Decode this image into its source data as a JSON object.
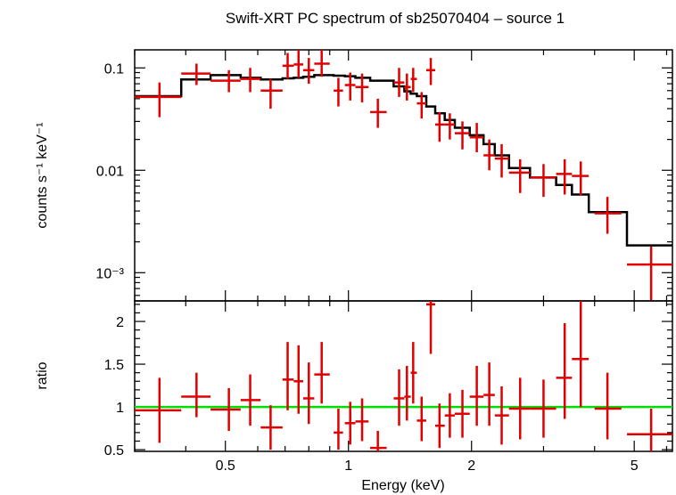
{
  "chart_data": {
    "type": "scatter",
    "title": "Swift-XRT PC spectrum of sb25070404 – source 1",
    "xlabel": "Energy (keV)",
    "x_scale": "log",
    "xlim": [
      0.3,
      6.2
    ],
    "x_ticks": [
      {
        "value": 0.5,
        "label": "0.5"
      },
      {
        "value": 1,
        "label": "1"
      },
      {
        "value": 2,
        "label": "2"
      },
      {
        "value": 5,
        "label": "5"
      }
    ],
    "colors": {
      "data": "#e00000",
      "model": "#000000",
      "unity": "#00dd00"
    },
    "panels": [
      {
        "name": "spectrum",
        "ylabel": "counts s⁻¹ keV⁻¹",
        "y_scale": "log",
        "ylim": [
          0.00053,
          0.15
        ],
        "y_ticks": [
          {
            "value": 0.1,
            "label": "0.1"
          },
          {
            "value": 0.01,
            "label": "0.01"
          },
          {
            "value": 0.001,
            "label": "10⁻³"
          }
        ],
        "data_points": [
          {
            "x": 0.345,
            "xlo": 0.3,
            "xhi": 0.39,
            "y": 0.052,
            "ylo": 0.033,
            "yhi": 0.072
          },
          {
            "x": 0.425,
            "xlo": 0.39,
            "xhi": 0.46,
            "y": 0.088,
            "ylo": 0.068,
            "yhi": 0.11
          },
          {
            "x": 0.51,
            "xlo": 0.46,
            "xhi": 0.545,
            "y": 0.075,
            "ylo": 0.058,
            "yhi": 0.095
          },
          {
            "x": 0.575,
            "xlo": 0.545,
            "xhi": 0.61,
            "y": 0.078,
            "ylo": 0.058,
            "yhi": 0.1
          },
          {
            "x": 0.645,
            "xlo": 0.61,
            "xhi": 0.69,
            "y": 0.06,
            "ylo": 0.04,
            "yhi": 0.078
          },
          {
            "x": 0.71,
            "xlo": 0.69,
            "xhi": 0.735,
            "y": 0.105,
            "ylo": 0.078,
            "yhi": 0.14
          },
          {
            "x": 0.755,
            "xlo": 0.735,
            "xhi": 0.775,
            "y": 0.108,
            "ylo": 0.08,
            "yhi": 0.15
          },
          {
            "x": 0.8,
            "xlo": 0.775,
            "xhi": 0.825,
            "y": 0.095,
            "ylo": 0.07,
            "yhi": 0.125
          },
          {
            "x": 0.86,
            "xlo": 0.825,
            "xhi": 0.9,
            "y": 0.11,
            "ylo": 0.082,
            "yhi": 0.15
          },
          {
            "x": 0.945,
            "xlo": 0.92,
            "xhi": 0.97,
            "y": 0.06,
            "ylo": 0.042,
            "yhi": 0.08
          },
          {
            "x": 1.01,
            "xlo": 0.98,
            "xhi": 1.04,
            "y": 0.068,
            "ylo": 0.048,
            "yhi": 0.09
          },
          {
            "x": 1.08,
            "xlo": 1.04,
            "xhi": 1.12,
            "y": 0.065,
            "ylo": 0.046,
            "yhi": 0.088
          },
          {
            "x": 1.18,
            "xlo": 1.13,
            "xhi": 1.24,
            "y": 0.037,
            "ylo": 0.026,
            "yhi": 0.05
          },
          {
            "x": 1.33,
            "xlo": 1.29,
            "xhi": 1.37,
            "y": 0.072,
            "ylo": 0.052,
            "yhi": 0.1
          },
          {
            "x": 1.39,
            "xlo": 1.37,
            "xhi": 1.42,
            "y": 0.065,
            "ylo": 0.048,
            "yhi": 0.088
          },
          {
            "x": 1.44,
            "xlo": 1.42,
            "xhi": 1.47,
            "y": 0.078,
            "ylo": 0.058,
            "yhi": 0.1
          },
          {
            "x": 1.51,
            "xlo": 1.47,
            "xhi": 1.55,
            "y": 0.045,
            "ylo": 0.032,
            "yhi": 0.058
          },
          {
            "x": 1.59,
            "xlo": 1.55,
            "xhi": 1.63,
            "y": 0.095,
            "ylo": 0.068,
            "yhi": 0.125
          },
          {
            "x": 1.67,
            "xlo": 1.63,
            "xhi": 1.72,
            "y": 0.028,
            "ylo": 0.019,
            "yhi": 0.037
          },
          {
            "x": 1.77,
            "xlo": 1.72,
            "xhi": 1.82,
            "y": 0.028,
            "ylo": 0.02,
            "yhi": 0.036
          },
          {
            "x": 1.9,
            "xlo": 1.82,
            "xhi": 1.98,
            "y": 0.023,
            "ylo": 0.016,
            "yhi": 0.03
          },
          {
            "x": 2.06,
            "xlo": 1.98,
            "xhi": 2.14,
            "y": 0.021,
            "ylo": 0.015,
            "yhi": 0.029
          },
          {
            "x": 2.21,
            "xlo": 2.14,
            "xhi": 2.28,
            "y": 0.014,
            "ylo": 0.01,
            "yhi": 0.02
          },
          {
            "x": 2.37,
            "xlo": 2.28,
            "xhi": 2.47,
            "y": 0.013,
            "ylo": 0.0085,
            "yhi": 0.018
          },
          {
            "x": 2.63,
            "xlo": 2.47,
            "xhi": 2.78,
            "y": 0.0095,
            "ylo": 0.006,
            "yhi": 0.0128
          },
          {
            "x": 3.0,
            "xlo": 2.78,
            "xhi": 3.22,
            "y": 0.0085,
            "ylo": 0.0055,
            "yhi": 0.0115
          },
          {
            "x": 3.38,
            "xlo": 3.22,
            "xhi": 3.52,
            "y": 0.0092,
            "ylo": 0.0058,
            "yhi": 0.0128
          },
          {
            "x": 3.7,
            "xlo": 3.52,
            "xhi": 3.87,
            "y": 0.0088,
            "ylo": 0.0057,
            "yhi": 0.0122
          },
          {
            "x": 4.3,
            "xlo": 4.0,
            "xhi": 4.65,
            "y": 0.0038,
            "ylo": 0.0024,
            "yhi": 0.0055
          },
          {
            "x": 5.5,
            "xlo": 4.8,
            "xhi": 6.2,
            "y": 0.0012,
            "ylo": 0.00054,
            "yhi": 0.0018
          }
        ],
        "model_steps": [
          {
            "from": 0.3,
            "to": 0.39,
            "y": 0.053
          },
          {
            "from": 0.39,
            "to": 0.46,
            "y": 0.077
          },
          {
            "from": 0.46,
            "to": 0.545,
            "y": 0.085
          },
          {
            "from": 0.545,
            "to": 0.61,
            "y": 0.08
          },
          {
            "from": 0.61,
            "to": 0.69,
            "y": 0.077
          },
          {
            "from": 0.69,
            "to": 0.735,
            "y": 0.079
          },
          {
            "from": 0.735,
            "to": 0.775,
            "y": 0.08
          },
          {
            "from": 0.775,
            "to": 0.825,
            "y": 0.082
          },
          {
            "from": 0.825,
            "to": 0.92,
            "y": 0.085
          },
          {
            "from": 0.92,
            "to": 0.98,
            "y": 0.084
          },
          {
            "from": 0.98,
            "to": 1.04,
            "y": 0.083
          },
          {
            "from": 1.04,
            "to": 1.13,
            "y": 0.08
          },
          {
            "from": 1.13,
            "to": 1.29,
            "y": 0.075
          },
          {
            "from": 1.29,
            "to": 1.37,
            "y": 0.066
          },
          {
            "from": 1.37,
            "to": 1.42,
            "y": 0.059
          },
          {
            "from": 1.42,
            "to": 1.47,
            "y": 0.056
          },
          {
            "from": 1.47,
            "to": 1.55,
            "y": 0.053
          },
          {
            "from": 1.55,
            "to": 1.63,
            "y": 0.042
          },
          {
            "from": 1.63,
            "to": 1.72,
            "y": 0.036
          },
          {
            "from": 1.72,
            "to": 1.82,
            "y": 0.031
          },
          {
            "from": 1.82,
            "to": 1.98,
            "y": 0.026
          },
          {
            "from": 1.98,
            "to": 2.14,
            "y": 0.022
          },
          {
            "from": 2.14,
            "to": 2.28,
            "y": 0.018
          },
          {
            "from": 2.28,
            "to": 2.47,
            "y": 0.014
          },
          {
            "from": 2.47,
            "to": 2.78,
            "y": 0.0105
          },
          {
            "from": 2.78,
            "to": 3.22,
            "y": 0.0085
          },
          {
            "from": 3.22,
            "to": 3.52,
            "y": 0.0072
          },
          {
            "from": 3.52,
            "to": 3.87,
            "y": 0.0058
          },
          {
            "from": 3.87,
            "to": 4.8,
            "y": 0.0039
          },
          {
            "from": 4.8,
            "to": 6.2,
            "y": 0.00185
          }
        ]
      },
      {
        "name": "ratio",
        "ylabel": "ratio",
        "y_scale": "linear",
        "ylim": [
          0.48,
          2.24
        ],
        "y_ticks": [
          {
            "value": 0.5,
            "label": "0.5"
          },
          {
            "value": 1,
            "label": "1"
          },
          {
            "value": 1.5,
            "label": "1.5"
          },
          {
            "value": 2,
            "label": "2"
          }
        ],
        "unity_line": 1,
        "data_points": [
          {
            "x": 0.345,
            "xlo": 0.3,
            "xhi": 0.39,
            "y": 0.96,
            "ylo": 0.58,
            "yhi": 1.34
          },
          {
            "x": 0.425,
            "xlo": 0.39,
            "xhi": 0.46,
            "y": 1.12,
            "ylo": 0.88,
            "yhi": 1.4
          },
          {
            "x": 0.51,
            "xlo": 0.46,
            "xhi": 0.545,
            "y": 0.97,
            "ylo": 0.72,
            "yhi": 1.22
          },
          {
            "x": 0.575,
            "xlo": 0.545,
            "xhi": 0.61,
            "y": 1.08,
            "ylo": 0.78,
            "yhi": 1.38
          },
          {
            "x": 0.645,
            "xlo": 0.61,
            "xhi": 0.69,
            "y": 0.76,
            "ylo": 0.5,
            "yhi": 1.02
          },
          {
            "x": 0.71,
            "xlo": 0.69,
            "xhi": 0.735,
            "y": 1.32,
            "ylo": 0.96,
            "yhi": 1.76
          },
          {
            "x": 0.755,
            "xlo": 0.735,
            "xhi": 0.775,
            "y": 1.3,
            "ylo": 0.92,
            "yhi": 1.72
          },
          {
            "x": 0.8,
            "xlo": 0.775,
            "xhi": 0.825,
            "y": 1.1,
            "ylo": 0.8,
            "yhi": 1.52
          },
          {
            "x": 0.86,
            "xlo": 0.825,
            "xhi": 0.9,
            "y": 1.38,
            "ylo": 1.04,
            "yhi": 1.76
          },
          {
            "x": 0.945,
            "xlo": 0.92,
            "xhi": 0.97,
            "y": 0.7,
            "ylo": 0.5,
            "yhi": 0.98
          },
          {
            "x": 1.01,
            "xlo": 0.98,
            "xhi": 1.04,
            "y": 0.81,
            "ylo": 0.56,
            "yhi": 1.06
          },
          {
            "x": 1.08,
            "xlo": 1.04,
            "xhi": 1.12,
            "y": 0.83,
            "ylo": 0.6,
            "yhi": 1.1
          },
          {
            "x": 1.18,
            "xlo": 1.13,
            "xhi": 1.24,
            "y": 0.52,
            "ylo": 0.48,
            "yhi": 0.72
          },
          {
            "x": 1.33,
            "xlo": 1.29,
            "xhi": 1.37,
            "y": 1.1,
            "ylo": 0.78,
            "yhi": 1.44
          },
          {
            "x": 1.39,
            "xlo": 1.37,
            "xhi": 1.42,
            "y": 1.12,
            "ylo": 0.84,
            "yhi": 1.48
          },
          {
            "x": 1.44,
            "xlo": 1.42,
            "xhi": 1.47,
            "y": 1.4,
            "ylo": 1.04,
            "yhi": 1.76
          },
          {
            "x": 1.51,
            "xlo": 1.47,
            "xhi": 1.55,
            "y": 0.84,
            "ylo": 0.6,
            "yhi": 1.12
          },
          {
            "x": 1.59,
            "xlo": 1.55,
            "xhi": 1.63,
            "y": 2.2,
            "ylo": 1.62,
            "yhi": 2.24
          },
          {
            "x": 1.67,
            "xlo": 1.63,
            "xhi": 1.72,
            "y": 0.78,
            "ylo": 0.52,
            "yhi": 1.04
          },
          {
            "x": 1.77,
            "xlo": 1.72,
            "xhi": 1.82,
            "y": 0.9,
            "ylo": 0.64,
            "yhi": 1.16
          },
          {
            "x": 1.9,
            "xlo": 1.82,
            "xhi": 1.98,
            "y": 0.92,
            "ylo": 0.64,
            "yhi": 1.2
          },
          {
            "x": 2.06,
            "xlo": 1.98,
            "xhi": 2.14,
            "y": 1.12,
            "ylo": 0.78,
            "yhi": 1.48
          },
          {
            "x": 2.21,
            "xlo": 2.14,
            "xhi": 2.28,
            "y": 1.14,
            "ylo": 0.78,
            "yhi": 1.52
          },
          {
            "x": 2.37,
            "xlo": 2.28,
            "xhi": 2.47,
            "y": 0.9,
            "ylo": 0.56,
            "yhi": 1.24
          },
          {
            "x": 2.63,
            "xlo": 2.47,
            "xhi": 2.78,
            "y": 0.98,
            "ylo": 0.62,
            "yhi": 1.34
          },
          {
            "x": 3.0,
            "xlo": 2.78,
            "xhi": 3.22,
            "y": 0.98,
            "ylo": 0.64,
            "yhi": 1.32
          },
          {
            "x": 3.38,
            "xlo": 3.22,
            "xhi": 3.52,
            "y": 1.34,
            "ylo": 0.86,
            "yhi": 1.98
          },
          {
            "x": 3.7,
            "xlo": 3.52,
            "xhi": 3.87,
            "y": 1.56,
            "ylo": 1.0,
            "yhi": 2.24
          },
          {
            "x": 4.3,
            "xlo": 4.0,
            "xhi": 4.65,
            "y": 0.98,
            "ylo": 0.62,
            "yhi": 1.4
          },
          {
            "x": 5.5,
            "xlo": 4.8,
            "xhi": 6.2,
            "y": 0.68,
            "ylo": 0.48,
            "yhi": 0.98
          }
        ]
      }
    ]
  }
}
